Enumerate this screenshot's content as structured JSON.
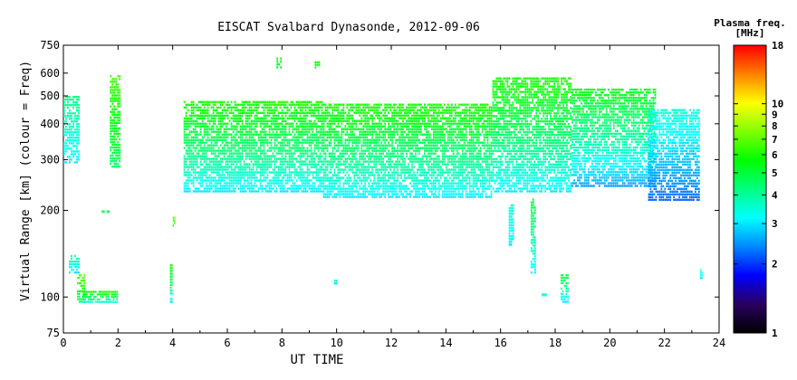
{
  "chart_data": {
    "type": "heatmap",
    "title": "EISCAT Svalbard Dynasonde, 2012-09-06",
    "xlabel": "UT TIME",
    "ylabel": "Virtual Range [km] (colour = Freq)",
    "x_ticks": [
      "0",
      "2",
      "4",
      "6",
      "8",
      "10",
      "12",
      "14",
      "16",
      "18",
      "20",
      "22",
      "24"
    ],
    "xlim": [
      0,
      24
    ],
    "y_scale": "log",
    "ylim": [
      75,
      750
    ],
    "y_ticks": [
      "75",
      "100",
      "200",
      "300",
      "400",
      "500",
      "600",
      "750"
    ],
    "colorbar": {
      "title": "Plasma freq.",
      "unit": "[MHz]",
      "scale": "log",
      "range": [
        1,
        18
      ],
      "ticks": [
        "1",
        "2",
        "3",
        "4",
        "5",
        "6",
        "7",
        "8",
        "9",
        "10",
        "18"
      ]
    },
    "colormap": [
      "#000000",
      "#2a0060",
      "#0000ff",
      "#0088ff",
      "#00ffff",
      "#00ff80",
      "#00ff00",
      "#80ff00",
      "#ffff00",
      "#ff8000",
      "#ff0000"
    ],
    "regions": [
      {
        "x": [
          0.0,
          0.6
        ],
        "y": [
          290,
          500
        ],
        "f": [
          3.0,
          4.2
        ]
      },
      {
        "x": [
          0.2,
          0.6
        ],
        "y": [
          120,
          140
        ],
        "f": [
          3.0,
          4.0
        ]
      },
      {
        "x": [
          0.5,
          0.8
        ],
        "y": [
          95,
          120
        ],
        "f": [
          4.5,
          7.0
        ]
      },
      {
        "x": [
          0.7,
          2.0
        ],
        "y": [
          95,
          105
        ],
        "f": [
          3.5,
          6.0
        ]
      },
      {
        "x": [
          1.4,
          1.7
        ],
        "y": [
          195,
          200
        ],
        "f": [
          4.5,
          5.0
        ]
      },
      {
        "x": [
          1.7,
          2.1
        ],
        "y": [
          280,
          590
        ],
        "f": [
          4.5,
          6.5
        ]
      },
      {
        "x": [
          3.9,
          4.0
        ],
        "y": [
          95,
          130
        ],
        "f": [
          3.0,
          6.0
        ]
      },
      {
        "x": [
          4.0,
          4.1
        ],
        "y": [
          175,
          190
        ],
        "f": [
          5.5,
          7.0
        ]
      },
      {
        "x": [
          4.4,
          9.5
        ],
        "y": [
          230,
          480
        ],
        "f": [
          3.0,
          6.0
        ]
      },
      {
        "x": [
          7.8,
          8.0
        ],
        "y": [
          620,
          680
        ],
        "f": [
          5.0,
          6.0
        ]
      },
      {
        "x": [
          9.2,
          9.4
        ],
        "y": [
          620,
          660
        ],
        "f": [
          5.0,
          6.0
        ]
      },
      {
        "x": [
          9.5,
          15.7
        ],
        "y": [
          220,
          470
        ],
        "f": [
          3.0,
          6.0
        ]
      },
      {
        "x": [
          9.9,
          10.1
        ],
        "y": [
          110,
          115
        ],
        "f": [
          3.0,
          3.5
        ]
      },
      {
        "x": [
          15.7,
          18.6
        ],
        "y": [
          230,
          580
        ],
        "f": [
          3.0,
          6.0
        ]
      },
      {
        "x": [
          16.3,
          16.5
        ],
        "y": [
          150,
          210
        ],
        "f": [
          3.0,
          3.5
        ]
      },
      {
        "x": [
          17.1,
          17.3
        ],
        "y": [
          120,
          220
        ],
        "f": [
          3.0,
          5.0
        ]
      },
      {
        "x": [
          17.5,
          17.7
        ],
        "y": [
          100,
          103
        ],
        "f": [
          3.0,
          3.5
        ]
      },
      {
        "x": [
          18.2,
          18.5
        ],
        "y": [
          95,
          120
        ],
        "f": [
          3.0,
          5.0
        ]
      },
      {
        "x": [
          18.6,
          21.7
        ],
        "y": [
          240,
          530
        ],
        "f": [
          2.5,
          5.5
        ]
      },
      {
        "x": [
          21.4,
          23.3
        ],
        "y": [
          215,
          450
        ],
        "f": [
          2.2,
          3.5
        ]
      },
      {
        "x": [
          23.3,
          23.4
        ],
        "y": [
          115,
          125
        ],
        "f": [
          3.0,
          3.5
        ]
      }
    ]
  }
}
